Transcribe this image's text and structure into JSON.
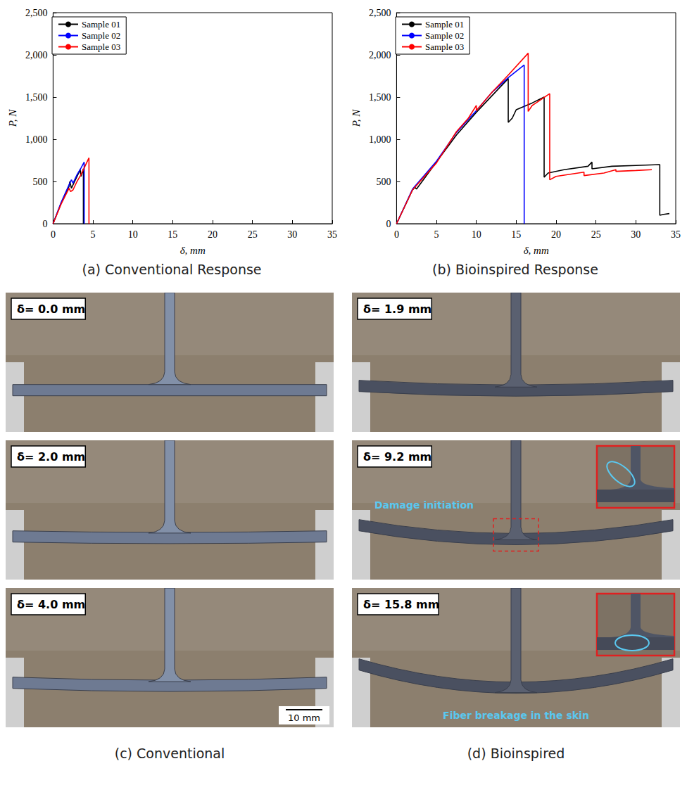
{
  "chart_data": [
    {
      "type": "line",
      "caption": "(a) Conventional Response",
      "x_label": "δ, mm",
      "y_label": "P, N",
      "xlim": [
        0,
        35
      ],
      "xticks": [
        0,
        5,
        10,
        15,
        20,
        25,
        30,
        35
      ],
      "ylim": [
        0,
        2500
      ],
      "yticks": [
        0,
        500,
        1000,
        1500,
        2000,
        2500
      ],
      "grid": false,
      "legend": "upper left",
      "series": [
        {
          "name": "Sample 01",
          "color": "#000000",
          "x": [
            0,
            1,
            2,
            2.1,
            2.3,
            2.6,
            3,
            3.4,
            3.5,
            3.7,
            3.8,
            3.8
          ],
          "values": [
            0,
            240,
            440,
            500,
            420,
            480,
            560,
            640,
            560,
            620,
            650,
            0
          ]
        },
        {
          "name": "Sample 02",
          "color": "#0000ff",
          "x": [
            0,
            1,
            2,
            2.3,
            2.5,
            3,
            3.5,
            3.9,
            3.9
          ],
          "values": [
            0,
            250,
            460,
            520,
            480,
            580,
            660,
            730,
            0
          ]
        },
        {
          "name": "Sample 03",
          "color": "#ff0000",
          "x": [
            0,
            1,
            2,
            2.2,
            2.5,
            3,
            3.5,
            4,
            4.5,
            4.5
          ],
          "values": [
            0,
            230,
            420,
            380,
            400,
            500,
            580,
            680,
            780,
            0
          ]
        }
      ]
    },
    {
      "type": "line",
      "caption": "(b) Bioinspired Response",
      "x_label": "δ, mm",
      "y_label": "P, N",
      "xlim": [
        0,
        35
      ],
      "xticks": [
        0,
        5,
        10,
        15,
        20,
        25,
        30,
        35
      ],
      "ylim": [
        0,
        2500
      ],
      "yticks": [
        0,
        500,
        1000,
        1500,
        2000,
        2500
      ],
      "grid": false,
      "legend": "upper left",
      "series": [
        {
          "name": "Sample 01",
          "color": "#000000",
          "x": [
            0,
            2,
            2.3,
            2.5,
            5,
            7.5,
            10,
            12,
            14,
            14,
            14.5,
            15,
            17,
            18.5,
            18.5,
            19,
            21,
            24,
            24.5,
            24.5,
            27,
            30,
            33,
            33,
            33.5,
            34.2
          ],
          "values": [
            0,
            400,
            430,
            410,
            730,
            1050,
            1320,
            1520,
            1720,
            1200,
            1250,
            1350,
            1430,
            1500,
            550,
            600,
            640,
            680,
            730,
            650,
            680,
            690,
            700,
            100,
            110,
            120
          ]
        },
        {
          "name": "Sample 02",
          "color": "#0000ff",
          "x": [
            0,
            2,
            5,
            7.5,
            10,
            12,
            14,
            16,
            16
          ],
          "values": [
            0,
            410,
            740,
            1080,
            1340,
            1560,
            1730,
            1880,
            0
          ]
        },
        {
          "name": "Sample 03",
          "color": "#ff0000",
          "x": [
            0,
            2,
            5,
            7.5,
            9,
            10,
            10,
            12,
            14,
            16.5,
            16.5,
            17,
            19.2,
            19.2,
            20,
            23.5,
            23.5,
            26,
            27.5,
            27.5,
            30,
            32
          ],
          "values": [
            0,
            400,
            720,
            1090,
            1250,
            1400,
            1340,
            1560,
            1760,
            2020,
            1330,
            1400,
            1540,
            520,
            560,
            610,
            570,
            600,
            640,
            620,
            630,
            640
          ]
        }
      ]
    }
  ],
  "photo_panels": [
    {
      "caption": "(c) Conventional",
      "scale_bar": "10 mm",
      "frames": [
        {
          "label": "δ= 0.0 mm"
        },
        {
          "label": "δ= 2.0 mm"
        },
        {
          "label": "δ= 4.0 mm"
        }
      ]
    },
    {
      "caption": "(d) Bioinspired",
      "frames": [
        {
          "label": "δ= 1.9 mm"
        },
        {
          "label": "δ= 9.2 mm",
          "annotation": "Damage initiation"
        },
        {
          "label": "δ= 15.8 mm",
          "annotation": "Fiber breakage in the skin"
        }
      ]
    }
  ]
}
